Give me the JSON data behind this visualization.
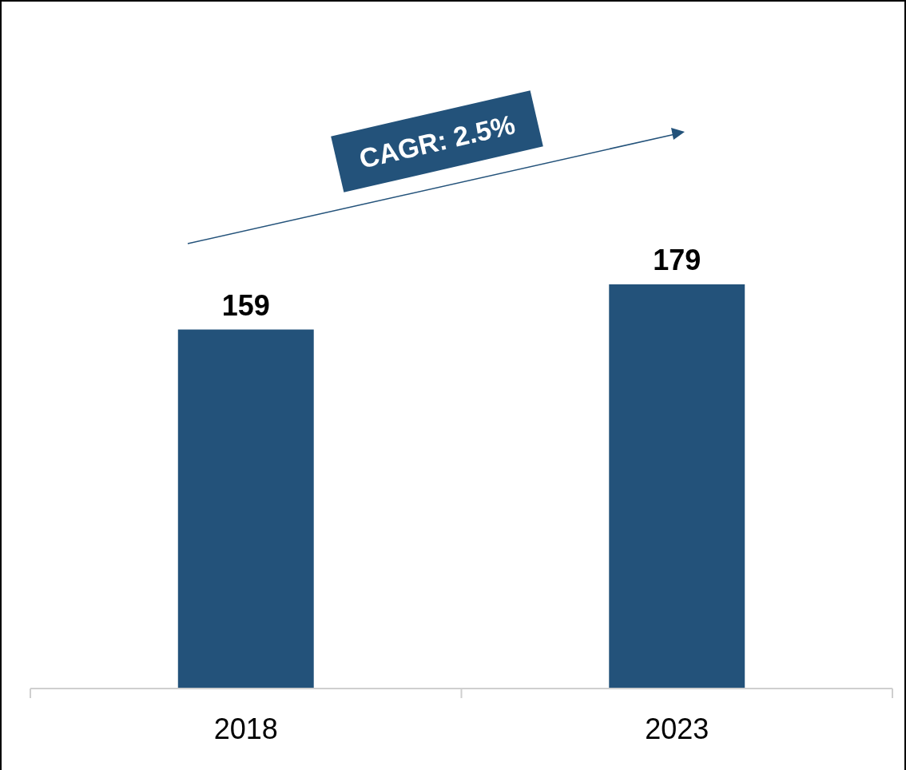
{
  "chart_data": {
    "type": "bar",
    "categories": [
      "2018",
      "2023"
    ],
    "values": [
      159,
      179
    ],
    "color": "#23527a",
    "data_labels": true,
    "annotations": [
      "CAGR: 2.5%"
    ]
  }
}
